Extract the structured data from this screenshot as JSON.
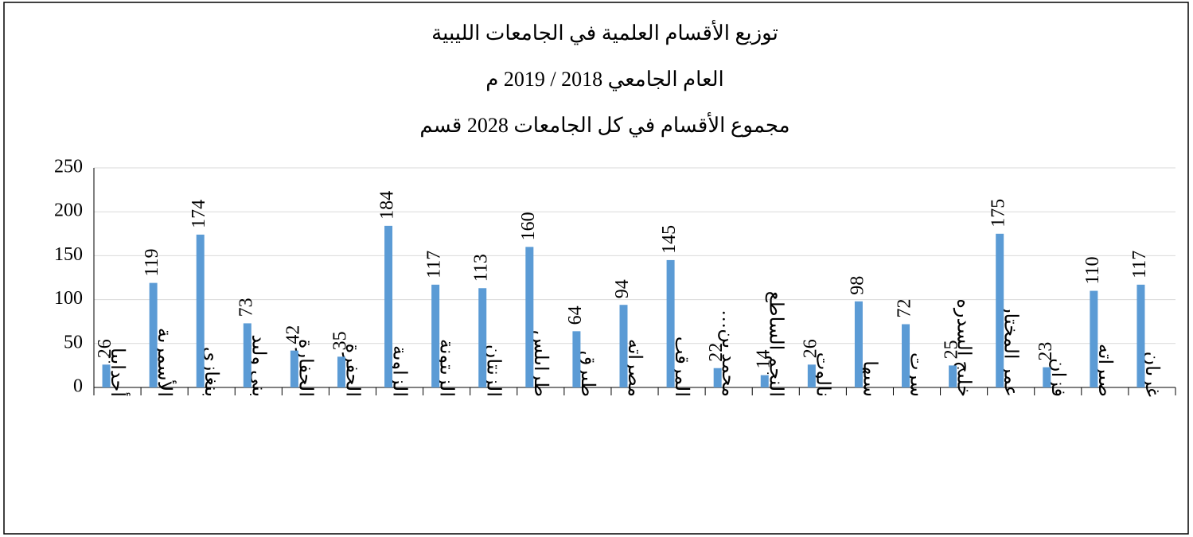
{
  "chart_data": {
    "type": "bar",
    "title": "توزيع الأقسام العلمية في الجامعات الليبية",
    "subtitles": [
      "العام الجامعي 2018 / 2019 م",
      "مجموع الأقسام في كل الجامعات 2028 قسم"
    ],
    "categories": [
      "أجدابيا",
      "الأسمرية",
      "بنغازي",
      "بني وليد",
      "الجفارة",
      "الجفرة",
      "الزاوية",
      "الزيتونة",
      "الزنتان",
      "طرابلس",
      "طبرق",
      "مصراته",
      "المرقب",
      "محمد بن…",
      "النجم الساطع",
      "نالوت",
      "سبها",
      "سرت",
      "خليج السدره",
      "عمر المختار",
      "فزان",
      "صبراته",
      "غريان"
    ],
    "values": [
      26,
      119,
      174,
      73,
      42,
      35,
      184,
      117,
      113,
      160,
      64,
      94,
      145,
      22,
      14,
      26,
      98,
      72,
      25,
      175,
      23,
      110,
      117
    ],
    "color": "#5b9bd5",
    "ylim": [
      0,
      250
    ],
    "yticks": [
      0,
      50,
      100,
      150,
      200,
      250
    ],
    "grid": true
  }
}
